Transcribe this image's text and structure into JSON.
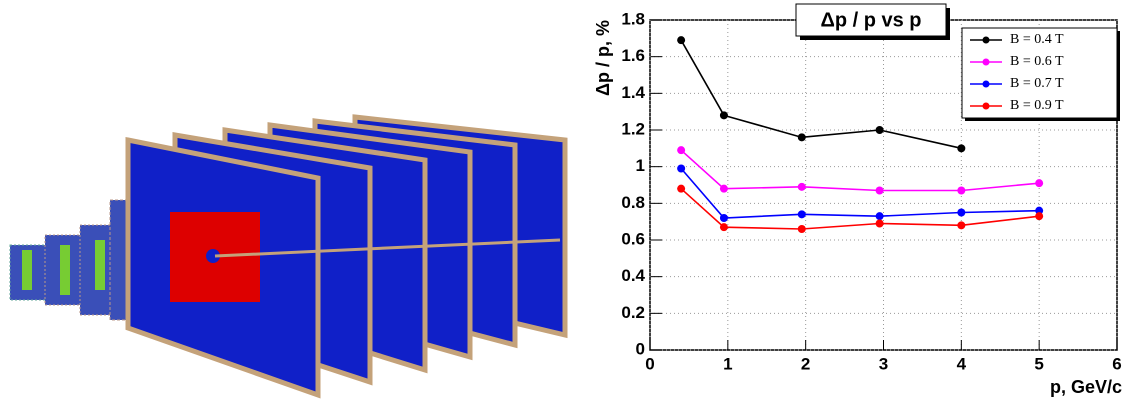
{
  "chart_data": {
    "type": "line",
    "title": "Δp / p vs p",
    "x_label": "p, GeV/c",
    "y_label": "Δp / p, %",
    "xlim": [
      0,
      6
    ],
    "xticks": [
      0,
      1,
      2,
      3,
      4,
      5,
      6
    ],
    "ylim": [
      0,
      1.8
    ],
    "yticks": [
      0,
      0.2,
      0.4,
      0.6,
      0.8,
      1,
      1.2,
      1.4,
      1.6,
      1.8
    ],
    "grid": true,
    "legend": "top-right",
    "series": [
      {
        "name": "B = 0.4 T",
        "color": "#000000",
        "x": [
          0.4,
          0.95,
          1.95,
          2.95,
          4
        ],
        "values": [
          1.69,
          1.28,
          1.16,
          1.2,
          1.1
        ]
      },
      {
        "name": "B = 0.6 T",
        "color": "#ff00ff",
        "x": [
          0.4,
          0.95,
          1.95,
          2.95,
          4,
          5
        ],
        "values": [
          1.09,
          0.88,
          0.89,
          0.87,
          0.87,
          0.91
        ]
      },
      {
        "name": "B = 0.7 T",
        "color": "#0000ff",
        "x": [
          0.4,
          0.95,
          1.95,
          2.95,
          4,
          5
        ],
        "values": [
          0.99,
          0.72,
          0.74,
          0.73,
          0.75,
          0.76
        ]
      },
      {
        "name": "B = 0.9 T",
        "color": "#ff0000",
        "x": [
          0.4,
          0.95,
          1.95,
          2.95,
          4,
          5
        ],
        "values": [
          0.88,
          0.67,
          0.66,
          0.69,
          0.68,
          0.73
        ]
      }
    ]
  }
}
